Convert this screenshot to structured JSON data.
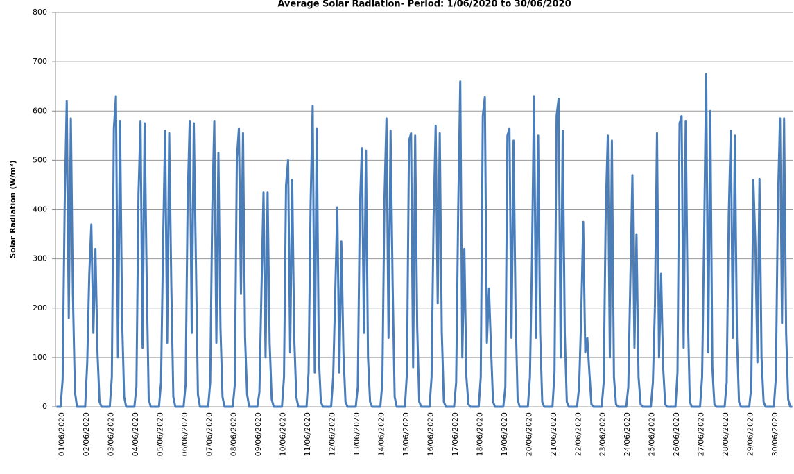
{
  "chart_data": {
    "type": "line",
    "title": "Average Solar Radiation- Period: 1/06/2020 to 30/06/2020",
    "y_label": "Solar Radiation (W/m²)",
    "categories": [
      "01/06/2020",
      null,
      null,
      null,
      null,
      null,
      null,
      null,
      null,
      null,
      null,
      null,
      "02/06/2020",
      null,
      null,
      null,
      null,
      null,
      null,
      null,
      null,
      null,
      null,
      null,
      "03/06/2020",
      null,
      null,
      null,
      null,
      null,
      null,
      null,
      null,
      null,
      null,
      null,
      "04/06/2020",
      null,
      null,
      null,
      null,
      null,
      null,
      null,
      null,
      null,
      null,
      null,
      "05/06/2020",
      null,
      null,
      null,
      null,
      null,
      null,
      null,
      null,
      null,
      null,
      null,
      "06/06/2020",
      null,
      null,
      null,
      null,
      null,
      null,
      null,
      null,
      null,
      null,
      null,
      "07/06/2020",
      null,
      null,
      null,
      null,
      null,
      null,
      null,
      null,
      null,
      null,
      null,
      "08/06/2020",
      null,
      null,
      null,
      null,
      null,
      null,
      null,
      null,
      null,
      null,
      null,
      "09/06/2020",
      null,
      null,
      null,
      null,
      null,
      null,
      null,
      null,
      null,
      null,
      null,
      "10/06/2020",
      null,
      null,
      null,
      null,
      null,
      null,
      null,
      null,
      null,
      null,
      null,
      "11/06/2020",
      null,
      null,
      null,
      null,
      null,
      null,
      null,
      null,
      null,
      null,
      null,
      "12/06/2020",
      null,
      null,
      null,
      null,
      null,
      null,
      null,
      null,
      null,
      null,
      null,
      "13/06/2020",
      null,
      null,
      null,
      null,
      null,
      null,
      null,
      null,
      null,
      null,
      null,
      "14/06/2020",
      null,
      null,
      null,
      null,
      null,
      null,
      null,
      null,
      null,
      null,
      null,
      "15/06/2020",
      null,
      null,
      null,
      null,
      null,
      null,
      null,
      null,
      null,
      null,
      null,
      "16/06/2020",
      null,
      null,
      null,
      null,
      null,
      null,
      null,
      null,
      null,
      null,
      null,
      "17/06/2020",
      null,
      null,
      null,
      null,
      null,
      null,
      null,
      null,
      null,
      null,
      null,
      "18/06/2020",
      null,
      null,
      null,
      null,
      null,
      null,
      null,
      null,
      null,
      null,
      null,
      "19/06/2020",
      null,
      null,
      null,
      null,
      null,
      null,
      null,
      null,
      null,
      null,
      null,
      "20/06/2020",
      null,
      null,
      null,
      null,
      null,
      null,
      null,
      null,
      null,
      null,
      null,
      "21/06/2020",
      null,
      null,
      null,
      null,
      null,
      null,
      null,
      null,
      null,
      null,
      null,
      "22/06/2020",
      null,
      null,
      null,
      null,
      null,
      null,
      null,
      null,
      null,
      null,
      null,
      "23/06/2020",
      null,
      null,
      null,
      null,
      null,
      null,
      null,
      null,
      null,
      null,
      null,
      "24/06/2020",
      null,
      null,
      null,
      null,
      null,
      null,
      null,
      null,
      null,
      null,
      null,
      "25/06/2020",
      null,
      null,
      null,
      null,
      null,
      null,
      null,
      null,
      null,
      null,
      null,
      "26/06/2020",
      null,
      null,
      null,
      null,
      null,
      null,
      null,
      null,
      null,
      null,
      null,
      "27/06/2020",
      null,
      null,
      null,
      null,
      null,
      null,
      null,
      null,
      null,
      null,
      null,
      "28/06/2020",
      null,
      null,
      null,
      null,
      null,
      null,
      null,
      null,
      null,
      null,
      null,
      "29/06/2020",
      null,
      null,
      null,
      null,
      null,
      null,
      null,
      null,
      null,
      null,
      null,
      "30/06/2020",
      null,
      null,
      null,
      null,
      null,
      null,
      null,
      null,
      null,
      null,
      null
    ],
    "values": [
      0,
      0,
      0,
      55,
      410,
      620,
      180,
      585,
      230,
      30,
      0,
      0,
      0,
      0,
      0,
      90,
      270,
      370,
      150,
      320,
      110,
      10,
      0,
      0,
      0,
      0,
      0,
      60,
      565,
      630,
      100,
      580,
      180,
      20,
      0,
      0,
      0,
      0,
      0,
      40,
      430,
      580,
      120,
      575,
      260,
      15,
      0,
      0,
      0,
      0,
      0,
      50,
      330,
      560,
      130,
      555,
      250,
      20,
      0,
      0,
      0,
      0,
      0,
      45,
      420,
      580,
      150,
      575,
      300,
      25,
      0,
      0,
      0,
      0,
      0,
      50,
      400,
      580,
      130,
      515,
      160,
      20,
      0,
      0,
      0,
      0,
      0,
      45,
      505,
      565,
      230,
      555,
      140,
      25,
      0,
      0,
      0,
      0,
      0,
      30,
      235,
      435,
      100,
      435,
      130,
      15,
      0,
      0,
      0,
      0,
      0,
      60,
      450,
      500,
      110,
      460,
      140,
      20,
      0,
      0,
      0,
      0,
      0,
      70,
      415,
      610,
      70,
      565,
      100,
      10,
      0,
      0,
      0,
      0,
      0,
      60,
      230,
      405,
      70,
      335,
      110,
      10,
      0,
      0,
      0,
      0,
      0,
      40,
      400,
      525,
      150,
      520,
      100,
      10,
      0,
      0,
      0,
      0,
      0,
      50,
      420,
      585,
      140,
      560,
      250,
      20,
      0,
      0,
      0,
      0,
      0,
      70,
      540,
      555,
      80,
      550,
      160,
      10,
      0,
      0,
      0,
      0,
      0,
      60,
      385,
      570,
      210,
      555,
      150,
      10,
      0,
      0,
      0,
      0,
      0,
      50,
      400,
      660,
      100,
      320,
      60,
      5,
      0,
      0,
      0,
      0,
      0,
      60,
      590,
      628,
      130,
      240,
      120,
      10,
      0,
      0,
      0,
      0,
      0,
      40,
      550,
      565,
      140,
      540,
      190,
      15,
      0,
      0,
      0,
      0,
      0,
      60,
      300,
      630,
      140,
      550,
      150,
      10,
      0,
      0,
      0,
      0,
      0,
      70,
      590,
      625,
      100,
      560,
      150,
      10,
      0,
      0,
      0,
      0,
      0,
      40,
      180,
      375,
      110,
      140,
      70,
      5,
      0,
      0,
      0,
      0,
      0,
      50,
      400,
      550,
      100,
      540,
      60,
      5,
      0,
      0,
      0,
      0,
      0,
      40,
      255,
      470,
      120,
      350,
      60,
      5,
      0,
      0,
      0,
      0,
      0,
      50,
      205,
      555,
      100,
      270,
      80,
      5,
      0,
      0,
      0,
      0,
      0,
      70,
      575,
      590,
      120,
      580,
      200,
      10,
      0,
      0,
      0,
      0,
      0,
      60,
      350,
      675,
      110,
      600,
      80,
      5,
      0,
      0,
      0,
      0,
      0,
      50,
      390,
      560,
      140,
      550,
      140,
      10,
      0,
      0,
      0,
      0,
      0,
      40,
      460,
      330,
      90,
      462,
      100,
      10,
      0,
      0,
      0,
      0,
      0,
      60,
      415,
      585,
      170,
      585,
      150,
      15,
      0,
      0
    ],
    "color": "#4a7ebb",
    "ylim": [
      0,
      800
    ],
    "yticks": [
      0,
      100,
      200,
      300,
      400,
      500,
      600,
      700,
      800
    ],
    "grid": true
  }
}
